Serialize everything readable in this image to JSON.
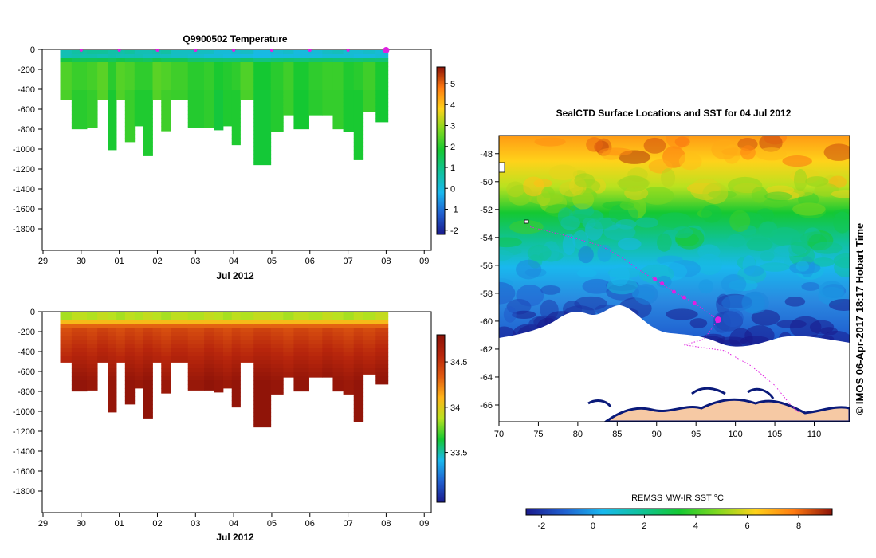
{
  "colors": {
    "temp_ramp": [
      "#1a1a8c",
      "#2060d0",
      "#19b8ee",
      "#10c29a",
      "#14c832",
      "#7fd81f",
      "#ffd21a",
      "#ff7a10",
      "#8c1208"
    ],
    "sal_ramp": [
      "#1a1a8c",
      "#2060d0",
      "#19b8ee",
      "#14c832",
      "#b8e21f",
      "#ffb418",
      "#e05a10",
      "#b8260c",
      "#8c1208"
    ],
    "land": "#f6c9a4",
    "track": "#e020e0"
  },
  "chart_data": [
    {
      "id": "temperature_section",
      "type": "heatmap",
      "title": "Q9900502  Temperature",
      "xlabel": "Jul 2012",
      "x_ticks": [
        "29",
        "30",
        "01",
        "02",
        "03",
        "04",
        "05",
        "06",
        "07",
        "08",
        "09"
      ],
      "x_range_days": [
        0,
        10
      ],
      "y_ticks": [
        "0",
        "-200",
        "-400",
        "-600",
        "-800",
        "-1000",
        "-1200",
        "-1400",
        "-1600",
        "-1800"
      ],
      "y_range": [
        -2000,
        0
      ],
      "colorbar": {
        "ticks": [
          "5",
          "4",
          "3",
          "2",
          "1",
          "0",
          "-1",
          "-2"
        ],
        "range": [
          -2.2,
          5.8
        ]
      },
      "profiles": [
        {
          "day": 0.5,
          "depth": 500,
          "surf": 0.5,
          "mid": 2.2,
          "deep": 2.4
        },
        {
          "day": 1.0,
          "depth": 790,
          "surf": 0.6,
          "mid": 1.9,
          "deep": 2.0
        },
        {
          "day": 1.3,
          "depth": 780,
          "surf": 0.6,
          "mid": 1.9,
          "deep": 2.0
        },
        {
          "day": 1.55,
          "depth": 500,
          "surf": 0.5,
          "mid": 2.0,
          "deep": 2.2
        },
        {
          "day": 1.85,
          "depth": 1000,
          "surf": 0.6,
          "mid": 1.8,
          "deep": 1.9
        },
        {
          "day": 2.0,
          "depth": 500,
          "surf": 0.5,
          "mid": 2.1,
          "deep": 2.3
        },
        {
          "day": 2.3,
          "depth": 920,
          "surf": 0.5,
          "mid": 1.9,
          "deep": 2.0
        },
        {
          "day": 2.5,
          "depth": 760,
          "surf": 0.5,
          "mid": 1.9,
          "deep": 2.0
        },
        {
          "day": 2.75,
          "depth": 1060,
          "surf": 0.4,
          "mid": 1.8,
          "deep": 1.9
        },
        {
          "day": 3.0,
          "depth": 500,
          "surf": 0.4,
          "mid": 2.1,
          "deep": 2.3
        },
        {
          "day": 3.2,
          "depth": 810,
          "surf": 0.4,
          "mid": 1.9,
          "deep": 2.0
        },
        {
          "day": 3.5,
          "depth": 500,
          "surf": 0.3,
          "mid": 2.0,
          "deep": 2.2
        },
        {
          "day": 4.1,
          "depth": 780,
          "surf": 0.2,
          "mid": 1.7,
          "deep": 1.9
        },
        {
          "day": 4.35,
          "depth": 780,
          "surf": 0.1,
          "mid": 1.7,
          "deep": 1.9
        },
        {
          "day": 4.6,
          "depth": 800,
          "surf": 0.1,
          "mid": 1.7,
          "deep": 1.8
        },
        {
          "day": 4.85,
          "depth": 760,
          "surf": 0.0,
          "mid": 1.7,
          "deep": 1.9
        },
        {
          "day": 5.05,
          "depth": 950,
          "surf": 0.0,
          "mid": 1.7,
          "deep": 1.8
        },
        {
          "day": 5.3,
          "depth": 500,
          "surf": 0.0,
          "mid": 1.9,
          "deep": 2.1
        },
        {
          "day": 5.75,
          "depth": 1150,
          "surf": -0.1,
          "mid": 1.6,
          "deep": 1.8
        },
        {
          "day": 6.2,
          "depth": 820,
          "surf": 0.0,
          "mid": 1.7,
          "deep": 1.9
        },
        {
          "day": 6.4,
          "depth": 650,
          "surf": 0.0,
          "mid": 1.8,
          "deep": 2.0
        },
        {
          "day": 6.75,
          "depth": 790,
          "surf": 0.0,
          "mid": 1.7,
          "deep": 1.9
        },
        {
          "day": 7.2,
          "depth": 650,
          "surf": 0.0,
          "mid": 1.8,
          "deep": 2.0
        },
        {
          "day": 7.45,
          "depth": 650,
          "surf": 0.1,
          "mid": 1.8,
          "deep": 2.0
        },
        {
          "day": 7.75,
          "depth": 790,
          "surf": 0.1,
          "mid": 1.7,
          "deep": 1.9
        },
        {
          "day": 8.0,
          "depth": 820,
          "surf": 0.1,
          "mid": 1.7,
          "deep": 1.9
        },
        {
          "day": 8.3,
          "depth": 1100,
          "surf": 0.0,
          "mid": 1.7,
          "deep": 1.8
        },
        {
          "day": 8.5,
          "depth": 620,
          "surf": 0.0,
          "mid": 1.8,
          "deep": 2.0
        },
        {
          "day": 8.95,
          "depth": 720,
          "surf": 0.1,
          "mid": 1.7,
          "deep": 1.9
        }
      ],
      "surface_markers_days": [
        1.0,
        2.0,
        3.0,
        4.0,
        5.0,
        6.0,
        7.0,
        8.0,
        9.0
      ]
    },
    {
      "id": "salinity_section",
      "type": "heatmap",
      "title": "",
      "xlabel": "Jul 2012",
      "x_ticks": [
        "29",
        "30",
        "01",
        "02",
        "03",
        "04",
        "05",
        "06",
        "07",
        "08",
        "09"
      ],
      "x_range_days": [
        0,
        10
      ],
      "y_ticks": [
        "0",
        "-200",
        "-400",
        "-600",
        "-800",
        "-1000",
        "-1200",
        "-1400",
        "-1600",
        "-1800"
      ],
      "y_range": [
        -2000,
        0
      ],
      "colorbar": {
        "ticks": [
          "34.5",
          "34",
          "33.5"
        ],
        "range": [
          32.95,
          34.8
        ]
      },
      "profiles_from": "temperature_section",
      "surface_salinity": 33.9,
      "deep_salinity": 34.72
    },
    {
      "id": "sst_map",
      "type": "heatmap",
      "title": "SealCTD Surface Locations and SST for 04 Jul 2012",
      "x_ticks": [
        "70",
        "75",
        "80",
        "85",
        "90",
        "95",
        "100",
        "105",
        "110"
      ],
      "x_range": [
        70,
        114.5
      ],
      "y_ticks": [
        "-48",
        "-50",
        "-52",
        "-54",
        "-56",
        "-58",
        "-60",
        "-62",
        "-64",
        "-66"
      ],
      "y_range": [
        -67.2,
        -46.7
      ],
      "colorbar": {
        "label": "REMSS MW-IR SST °C",
        "ticks": [
          "-2",
          "0",
          "2",
          "4",
          "6",
          "8"
        ],
        "range": [
          -2.6,
          9.3
        ]
      },
      "track_points": [
        {
          "lon": 89.8,
          "lat": -57.0
        },
        {
          "lon": 90.7,
          "lat": -57.3
        },
        {
          "lon": 92.2,
          "lat": -57.9
        },
        {
          "lon": 93.5,
          "lat": -58.3
        },
        {
          "lon": 94.8,
          "lat": -58.7
        },
        {
          "lon": 97.8,
          "lat": -59.9
        }
      ],
      "track_path": [
        {
          "lon": 73.6,
          "lat": -53.2
        },
        {
          "lon": 78,
          "lat": -53.8
        },
        {
          "lon": 83,
          "lat": -54.6
        },
        {
          "lon": 86,
          "lat": -55.6
        },
        {
          "lon": 88.5,
          "lat": -56.6
        },
        {
          "lon": 89.8,
          "lat": -57.0
        },
        {
          "lon": 92.2,
          "lat": -57.9
        },
        {
          "lon": 94.8,
          "lat": -58.7
        },
        {
          "lon": 97.8,
          "lat": -59.9
        },
        {
          "lon": 96,
          "lat": -61.3
        },
        {
          "lon": 93.5,
          "lat": -61.7
        },
        {
          "lon": 98.5,
          "lat": -62.1
        },
        {
          "lon": 102,
          "lat": -63.2
        },
        {
          "lon": 105,
          "lat": -64.6
        },
        {
          "lon": 107,
          "lat": -66.0
        },
        {
          "lon": 108,
          "lat": -66.5
        }
      ]
    }
  ],
  "credit": "©  IMOS 06-Apr-2017 18:17 Hobart Time"
}
